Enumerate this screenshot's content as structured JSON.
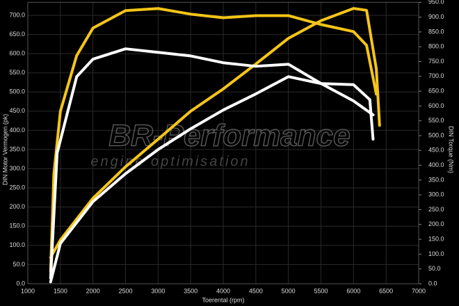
{
  "chart_data": {
    "type": "line",
    "watermark": {
      "title": "BR-Performance",
      "subtitle": "engine optimisation"
    },
    "xlabel": "Toerental (rpm)",
    "ylabel": "DIN Motor Vermogen (pk)",
    "y2label": "DIN Torque (Nm)",
    "xlim": [
      1000,
      7000
    ],
    "xticks": [
      1000,
      1500,
      2000,
      2500,
      3000,
      3500,
      4000,
      4500,
      5000,
      5500,
      6000,
      6500,
      7000
    ],
    "ylim": [
      0,
      700
    ],
    "yticks": [
      {
        "value": 0,
        "label": "0.0"
      },
      {
        "value": 50,
        "label": "50.0"
      },
      {
        "value": 100,
        "label": "100.0"
      },
      {
        "value": 150,
        "label": "150.0"
      },
      {
        "value": 200,
        "label": "200.0"
      },
      {
        "value": 250,
        "label": "250.0"
      },
      {
        "value": 300,
        "label": "300.0"
      },
      {
        "value": 350,
        "label": "350.0"
      },
      {
        "value": 400,
        "label": "400.0"
      },
      {
        "value": 450,
        "label": "450.0"
      },
      {
        "value": 500,
        "label": "500.0"
      },
      {
        "value": 550,
        "label": "550.0"
      },
      {
        "value": 600,
        "label": "600.0"
      },
      {
        "value": 650,
        "label": "650.0"
      },
      {
        "value": 700,
        "label": "700.0"
      }
    ],
    "y2lim": [
      0,
      950
    ],
    "y2ticks": [
      {
        "value": 0,
        "label": "0.0"
      },
      {
        "value": 50,
        "label": "50.0"
      },
      {
        "value": 100,
        "label": "100.0"
      },
      {
        "value": 150,
        "label": "150.0"
      },
      {
        "value": 200,
        "label": "200.0"
      },
      {
        "value": 250,
        "label": "250.0"
      },
      {
        "value": 300,
        "label": "300.0"
      },
      {
        "value": 350,
        "label": "350.0"
      },
      {
        "value": 400,
        "label": "400.0"
      },
      {
        "value": 450,
        "label": "450.0"
      },
      {
        "value": 500,
        "label": "500.0"
      },
      {
        "value": 550,
        "label": "550.0"
      },
      {
        "value": 600,
        "label": "600.0"
      },
      {
        "value": 650,
        "label": "650.0"
      },
      {
        "value": 700,
        "label": "700.0"
      },
      {
        "value": 750,
        "label": "750.0"
      },
      {
        "value": 800,
        "label": "800.0"
      },
      {
        "value": 850,
        "label": "850.0"
      },
      {
        "value": 900,
        "label": "900.0"
      },
      {
        "value": 950,
        "label": "950.0"
      }
    ],
    "grid": true,
    "series": [
      {
        "color": "#f5c518",
        "axis": "y2",
        "x": [
          1350,
          1400,
          1500,
          1750,
          2000,
          2500,
          3000,
          3500,
          4000,
          4500,
          5000,
          5500,
          6000,
          6200,
          6350
        ],
        "values": [
          42,
          371,
          582,
          770,
          863,
          922,
          929,
          910,
          898,
          905,
          905,
          875,
          851,
          805,
          640
        ]
      },
      {
        "color": "#f5c518",
        "x": [
          1350,
          1500,
          2000,
          2500,
          3000,
          3500,
          4000,
          4500,
          5000,
          5500,
          6000,
          6200,
          6350,
          6400
        ],
        "values": [
          69,
          114,
          223,
          305,
          377,
          450,
          508,
          573,
          640,
          686,
          718,
          713,
          560,
          413
        ]
      },
      {
        "color": "#ffffff",
        "axis": "y2",
        "x": [
          1350,
          1450,
          1750,
          2000,
          2500,
          3000,
          3500,
          4000,
          4500,
          5000,
          5500,
          6000,
          6300
        ],
        "values": [
          19,
          441,
          699,
          758,
          793,
          781,
          769,
          746,
          734,
          741,
          676,
          617,
          570
        ]
      },
      {
        "color": "#ffffff",
        "x": [
          1350,
          1500,
          2000,
          2500,
          3000,
          3500,
          4000,
          4500,
          5000,
          5500,
          6000,
          6250,
          6300
        ],
        "values": [
          5,
          105,
          214,
          287,
          350,
          404,
          453,
          495,
          540,
          522,
          519,
          480,
          377
        ]
      }
    ]
  }
}
